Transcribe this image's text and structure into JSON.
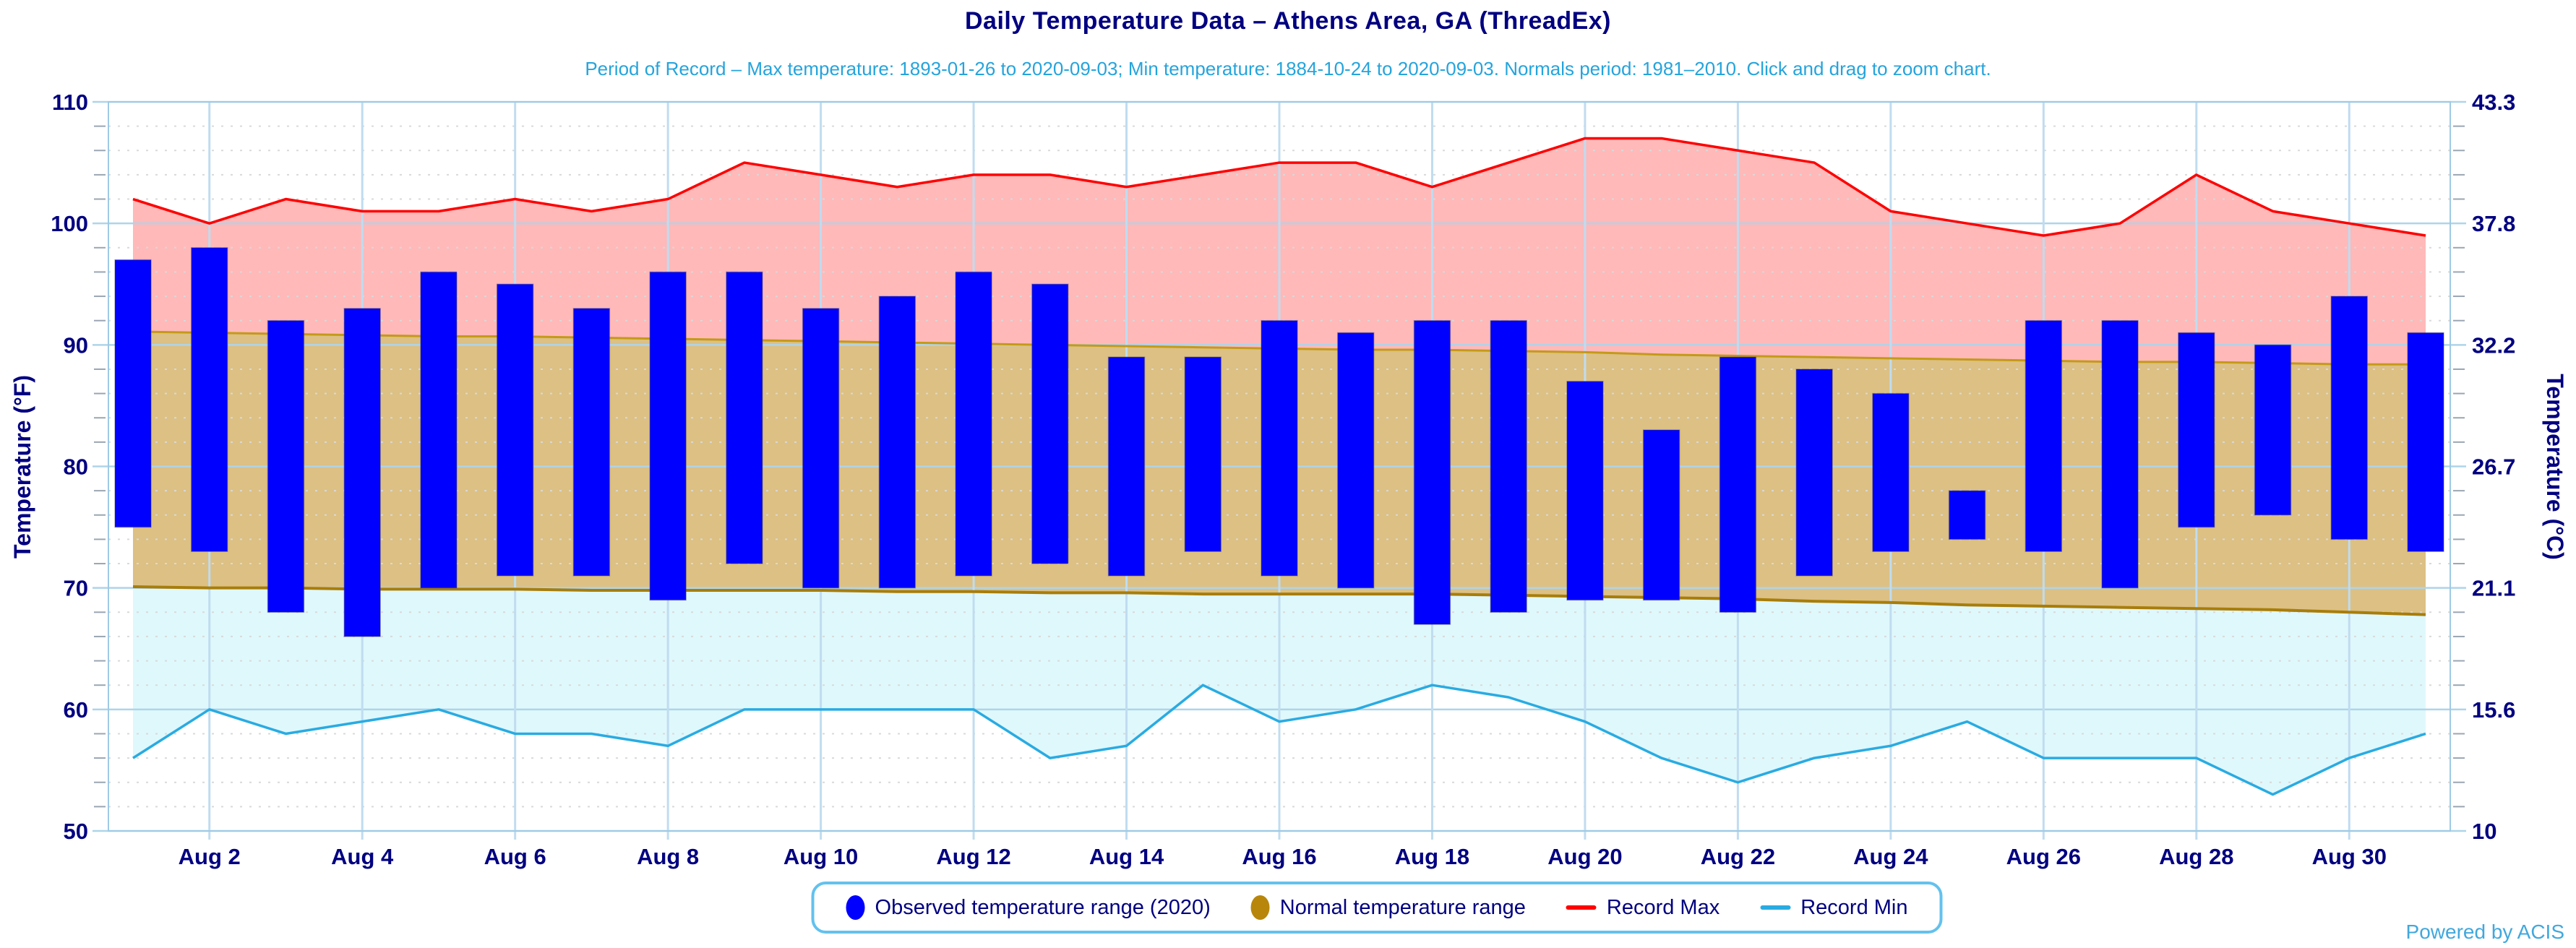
{
  "title": "Daily Temperature Data – Athens Area, GA (ThreadEx)",
  "subtitle": "Period of Record – Max temperature: 1893-01-26 to 2020-09-03; Min temperature: 1884-10-24 to 2020-09-03. Normals period: 1981–2010. Click and drag to zoom chart.",
  "powered_by": "Powered by ACIS",
  "legend": [
    {
      "label": "Observed temperature range (2020)",
      "marker": "ellipse",
      "color": "#0000fe"
    },
    {
      "label": "Normal temperature range",
      "marker": "ellipse",
      "color": "#b8860b"
    },
    {
      "label": "Record Max",
      "marker": "line",
      "color": "#fe0000"
    },
    {
      "label": "Record Min",
      "marker": "line",
      "color": "#29abe2"
    }
  ],
  "colors": {
    "observed_bar": "#0000fe",
    "observed_bar_edge": "rgba(60,60,80,0.35)",
    "normal_band_fill": "#dcc084",
    "normal_band_edge_top": "#c49a18",
    "normal_band_edge_bottom": "#a87d0a",
    "record_max_line": "#fe0000",
    "record_max_fill": "#ffb9b9",
    "record_min_line": "#29abe2",
    "record_min_fill": "#dff8fc",
    "axis_text": "#000080",
    "grid_major_h": "#aed4ea",
    "grid_vertical": "#c0dcf0",
    "grid_minor": "#d9d9d9",
    "minor_tick": "#9aa6b2",
    "plot_border": "#9fcae4"
  },
  "chart_data": {
    "type": "combo",
    "title": "Daily Temperature Data – Athens Area, GA (ThreadEx)",
    "categories": [
      "Aug 1",
      "Aug 2",
      "Aug 3",
      "Aug 4",
      "Aug 5",
      "Aug 6",
      "Aug 7",
      "Aug 8",
      "Aug 9",
      "Aug 10",
      "Aug 11",
      "Aug 12",
      "Aug 13",
      "Aug 14",
      "Aug 15",
      "Aug 16",
      "Aug 17",
      "Aug 18",
      "Aug 19",
      "Aug 20",
      "Aug 21",
      "Aug 22",
      "Aug 23",
      "Aug 24",
      "Aug 25",
      "Aug 26",
      "Aug 27",
      "Aug 28",
      "Aug 29",
      "Aug 30",
      "Aug 31"
    ],
    "x_axis": {
      "tick_labels": [
        "Aug 2",
        "Aug 4",
        "Aug 6",
        "Aug 8",
        "Aug 10",
        "Aug 12",
        "Aug 14",
        "Aug 16",
        "Aug 18",
        "Aug 20",
        "Aug 22",
        "Aug 24",
        "Aug 26",
        "Aug 28",
        "Aug 30"
      ],
      "tick_day_indices": [
        1,
        3,
        5,
        7,
        9,
        11,
        13,
        15,
        17,
        19,
        21,
        23,
        25,
        27,
        29
      ]
    },
    "yaxis_left": {
      "label": "Temperature (°F)",
      "min": 50,
      "max": 110,
      "major_ticks": [
        110,
        100,
        90,
        80,
        70,
        60,
        50
      ],
      "minor_step": 2
    },
    "yaxis_right": {
      "label": "Temperature (°C)",
      "tick_labels": [
        "43.3",
        "37.8",
        "32.2",
        "26.7",
        "21.1",
        "15.6",
        "10"
      ]
    },
    "series": [
      {
        "name": "Observed temperature range (2020)",
        "type": "range-bar",
        "low": [
          75,
          73,
          68,
          66,
          70,
          71,
          71,
          69,
          72,
          70,
          70,
          71,
          72,
          71,
          73,
          71,
          70,
          67,
          68,
          69,
          69,
          68,
          71,
          73,
          74,
          73,
          70,
          75,
          76,
          74,
          73
        ],
        "high": [
          97,
          98,
          92,
          93,
          96,
          95,
          93,
          96,
          96,
          93,
          94,
          96,
          95,
          89,
          89,
          92,
          91,
          92,
          92,
          87,
          83,
          89,
          88,
          86,
          78,
          92,
          92,
          91,
          90,
          94,
          91
        ]
      },
      {
        "name": "Normal temperature range",
        "type": "range-band",
        "low": [
          70.1,
          70.0,
          70.0,
          69.9,
          69.9,
          69.9,
          69.8,
          69.8,
          69.8,
          69.8,
          69.7,
          69.7,
          69.6,
          69.6,
          69.5,
          69.5,
          69.5,
          69.5,
          69.4,
          69.3,
          69.2,
          69.1,
          68.9,
          68.8,
          68.6,
          68.5,
          68.4,
          68.3,
          68.2,
          68.0,
          67.8
        ],
        "high": [
          91.1,
          91.0,
          90.9,
          90.8,
          90.7,
          90.7,
          90.6,
          90.5,
          90.4,
          90.3,
          90.2,
          90.1,
          90.0,
          89.9,
          89.8,
          89.7,
          89.6,
          89.6,
          89.5,
          89.4,
          89.2,
          89.1,
          89.0,
          88.9,
          88.8,
          88.7,
          88.6,
          88.6,
          88.5,
          88.4,
          88.4
        ]
      },
      {
        "name": "Record Max",
        "type": "line-area",
        "values": [
          102,
          100,
          102,
          101,
          101,
          102,
          101,
          102,
          105,
          104,
          103,
          104,
          104,
          103,
          104,
          105,
          105,
          103,
          105,
          107,
          107,
          106,
          105,
          101,
          100,
          99,
          100,
          104,
          101,
          100,
          99
        ]
      },
      {
        "name": "Record Min",
        "type": "line-area",
        "values": [
          56,
          60,
          58,
          59,
          60,
          58,
          58,
          57,
          60,
          60,
          60,
          60,
          56,
          57,
          62,
          59,
          60,
          62,
          61,
          59,
          56,
          54,
          56,
          57,
          59,
          56,
          56,
          56,
          53,
          56,
          58
        ]
      }
    ],
    "grid": {
      "horizontal_major": true,
      "vertical_major_every_2_days": true,
      "minor_dotted": true
    },
    "interaction_hint": "Click and drag to zoom chart"
  }
}
